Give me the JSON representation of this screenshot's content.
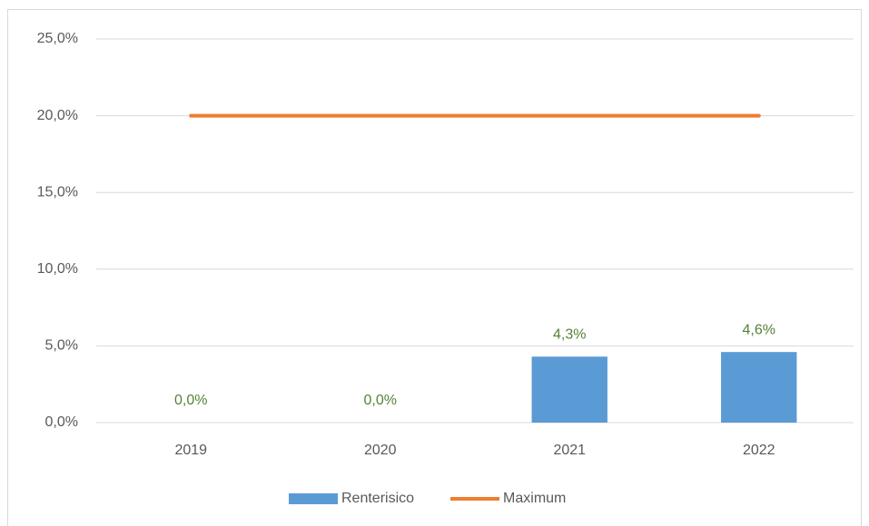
{
  "chart_data": {
    "type": "combo",
    "categories": [
      "2019",
      "2020",
      "2021",
      "2022"
    ],
    "series": [
      {
        "name": "Renterisico",
        "type": "bar",
        "color": "#5b9bd5",
        "values": [
          0,
          0,
          4.3,
          4.6
        ],
        "value_labels": [
          "0,0%",
          "0,0%",
          "4,3%",
          "4,6%"
        ],
        "label_color": "#548235"
      },
      {
        "name": "Maximum",
        "type": "line",
        "color": "#ed7d31",
        "values": [
          20,
          20,
          20,
          20
        ]
      }
    ],
    "ylim": [
      0,
      25
    ],
    "yticks": [
      {
        "value": 0,
        "label": "0,0%"
      },
      {
        "value": 5,
        "label": "5,0%"
      },
      {
        "value": 10,
        "label": "10,0%"
      },
      {
        "value": 15,
        "label": "15,0%"
      },
      {
        "value": 20,
        "label": "20,0%"
      },
      {
        "value": 25,
        "label": "25,0%"
      }
    ],
    "grid": true,
    "legend": "bottom"
  }
}
